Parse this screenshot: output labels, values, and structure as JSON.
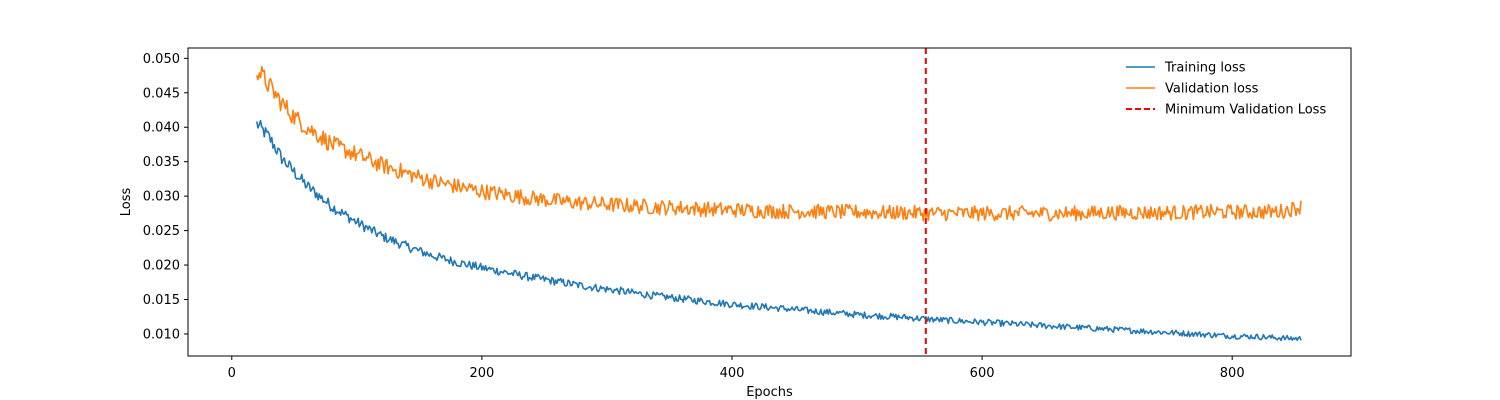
{
  "chart_data": {
    "type": "line",
    "title": "",
    "xlabel": "Epochs",
    "ylabel": "Loss",
    "xlim": [
      -35,
      895
    ],
    "ylim": [
      0.0068,
      0.0515
    ],
    "x_ticks": [
      0,
      200,
      400,
      600,
      800
    ],
    "y_ticks": [
      0.01,
      0.015,
      0.02,
      0.025,
      0.03,
      0.035,
      0.04,
      0.045,
      0.05
    ],
    "y_tick_labels": [
      "0.010",
      "0.015",
      "0.020",
      "0.025",
      "0.030",
      "0.035",
      "0.040",
      "0.045",
      "0.050"
    ],
    "legend_position": "top-right",
    "grid": false,
    "series": [
      {
        "name": "Training loss",
        "color": "#1f77b4",
        "style": "solid",
        "x": [
          20,
          30,
          40,
          50,
          60,
          70,
          80,
          100,
          120,
          140,
          160,
          180,
          200,
          220,
          240,
          260,
          280,
          300,
          320,
          340,
          360,
          380,
          400,
          420,
          440,
          460,
          480,
          500,
          520,
          540,
          560,
          580,
          600,
          620,
          640,
          660,
          680,
          700,
          720,
          740,
          760,
          780,
          800,
          820,
          840,
          855
        ],
        "y": [
          0.0405,
          0.0385,
          0.0355,
          0.0335,
          0.0315,
          0.03,
          0.0285,
          0.0262,
          0.0242,
          0.0227,
          0.0214,
          0.0204,
          0.0196,
          0.0189,
          0.0182,
          0.0176,
          0.017,
          0.0165,
          0.016,
          0.0155,
          0.0151,
          0.0147,
          0.0143,
          0.014,
          0.0137,
          0.0134,
          0.0131,
          0.0128,
          0.0126,
          0.0124,
          0.0121,
          0.0119,
          0.0117,
          0.0115,
          0.0113,
          0.0111,
          0.0109,
          0.0107,
          0.0105,
          0.0103,
          0.0101,
          0.0099,
          0.0097,
          0.0096,
          0.0094,
          0.0093
        ],
        "noise": 0.0004
      },
      {
        "name": "Validation loss",
        "color": "#ff7f0e",
        "style": "solid",
        "x": [
          20,
          30,
          40,
          50,
          60,
          70,
          80,
          100,
          120,
          140,
          160,
          180,
          200,
          220,
          240,
          260,
          280,
          300,
          320,
          340,
          360,
          380,
          400,
          420,
          440,
          460,
          480,
          500,
          520,
          540,
          560,
          580,
          600,
          620,
          640,
          660,
          680,
          700,
          720,
          740,
          760,
          780,
          800,
          820,
          840,
          855
        ],
        "y": [
          0.0485,
          0.046,
          0.0435,
          0.0415,
          0.04,
          0.0388,
          0.0375,
          0.036,
          0.0345,
          0.0333,
          0.0322,
          0.0314,
          0.0307,
          0.0302,
          0.0297,
          0.0293,
          0.029,
          0.0288,
          0.0286,
          0.0284,
          0.0283,
          0.0281,
          0.028,
          0.0279,
          0.0278,
          0.0278,
          0.0277,
          0.0277,
          0.0276,
          0.0276,
          0.0275,
          0.0275,
          0.0275,
          0.0275,
          0.0275,
          0.0275,
          0.0275,
          0.0276,
          0.0276,
          0.0276,
          0.0276,
          0.0277,
          0.0277,
          0.0277,
          0.0278,
          0.0285
        ],
        "noise": 0.0011
      },
      {
        "name": "Minimum Validation Loss",
        "color": "#ff0000",
        "style": "dashed",
        "vertical_line_x": 555
      }
    ]
  }
}
